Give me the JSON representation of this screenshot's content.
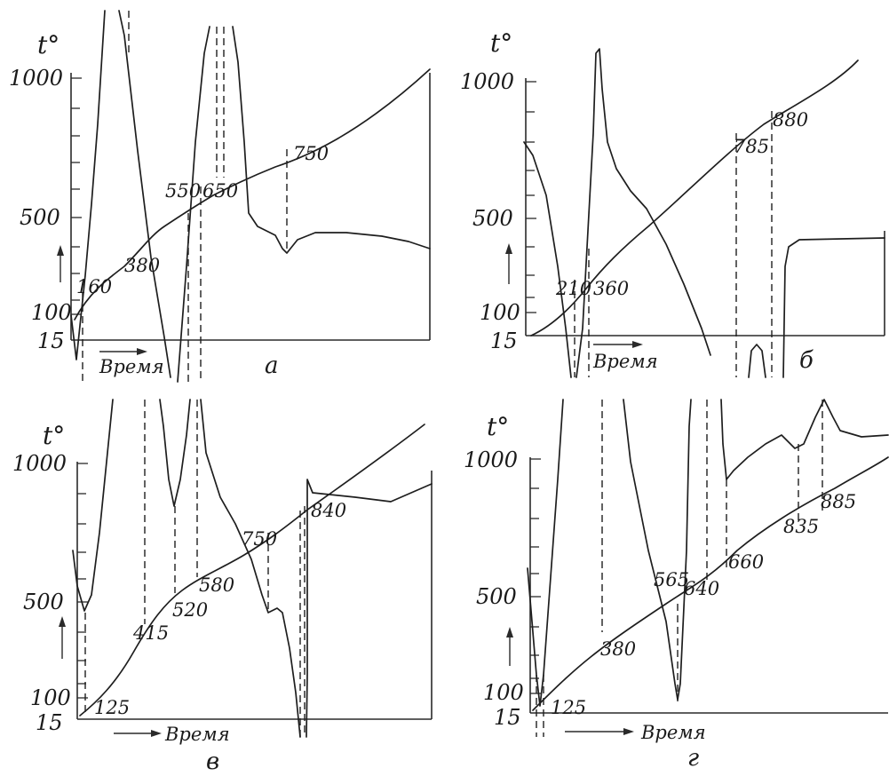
{
  "chart_data": [
    {
      "type": "line",
      "panel_label": "а",
      "ylabel": "t°",
      "xlabel": "Время",
      "y_ticks": [
        "1000",
        "500",
        "100",
        "15"
      ],
      "heating_curve": {
        "x": [
          0,
          0.06,
          0.2,
          0.35,
          0.5,
          0.6,
          0.75,
          1.0
        ],
        "y": [
          80,
          180,
          380,
          480,
          550,
          650,
          750,
          1020
        ]
      },
      "annotations": [
        "160",
        "380",
        "550",
        "650",
        "750"
      ],
      "transformation_points": [
        160,
        380,
        550,
        650,
        750
      ]
    },
    {
      "type": "line",
      "panel_label": "б",
      "ylabel": "t°",
      "xlabel": "Время",
      "y_ticks": [
        "1000",
        "500",
        "100",
        "15"
      ],
      "heating_curve": {
        "x": [
          0,
          0.12,
          0.26,
          0.4,
          0.55,
          0.65,
          0.78,
          1.0
        ],
        "y": [
          15,
          120,
          240,
          420,
          580,
          700,
          840,
          1060
        ]
      },
      "annotations": [
        "210",
        "360",
        "785",
        "880"
      ],
      "transformation_points": [
        210,
        360,
        785,
        880
      ]
    },
    {
      "type": "line",
      "panel_label": "в",
      "ylabel": "t°",
      "xlabel": "Время",
      "y_ticks": [
        "1000",
        "500",
        "100",
        "15"
      ],
      "heating_curve": {
        "x": [
          0,
          0.08,
          0.2,
          0.35,
          0.5,
          0.6,
          0.75,
          1.0
        ],
        "y": [
          15,
          125,
          380,
          520,
          600,
          700,
          860,
          1110
        ]
      },
      "annotations": [
        "125",
        "415",
        "520",
        "580",
        "750",
        "840"
      ],
      "transformation_points": [
        125,
        415,
        520,
        580,
        750,
        840
      ]
    },
    {
      "type": "line",
      "panel_label": "г",
      "ylabel": "t°",
      "xlabel": "Время",
      "y_ticks": [
        "1000",
        "500",
        "100",
        "15"
      ],
      "heating_curve": {
        "x": [
          0,
          0.05,
          0.2,
          0.4,
          0.5,
          0.55,
          0.7,
          0.8,
          1.0
        ],
        "y": [
          15,
          125,
          380,
          565,
          640,
          660,
          835,
          885,
          1000
        ]
      },
      "annotations": [
        "125",
        "380",
        "565",
        "640",
        "660",
        "835",
        "885"
      ],
      "transformation_points": [
        125,
        380,
        565,
        640,
        660,
        835,
        885
      ]
    }
  ]
}
